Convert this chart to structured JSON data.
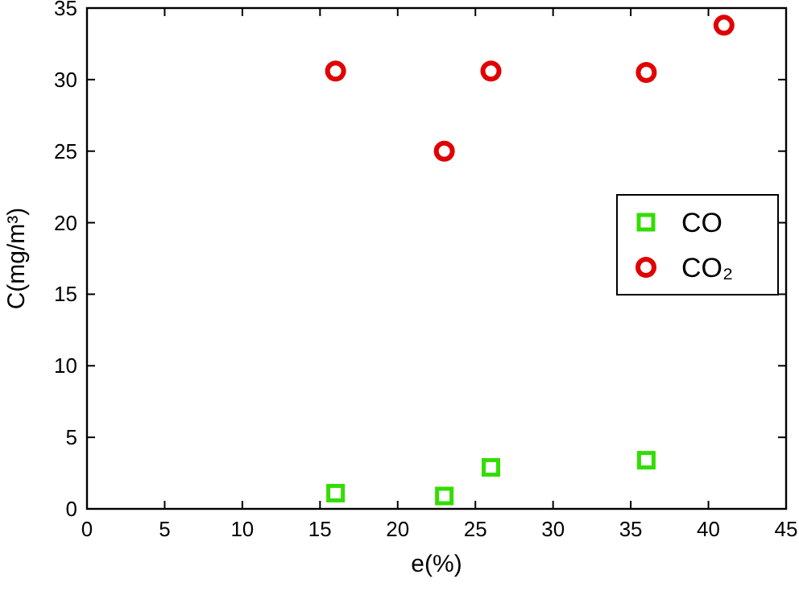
{
  "chart_data": {
    "type": "scatter",
    "xlabel": "e(%)",
    "ylabel": "C(mg/m³)",
    "xlim": [
      0,
      45
    ],
    "ylim": [
      0,
      35
    ],
    "xticks": [
      0,
      5,
      10,
      15,
      20,
      25,
      30,
      35,
      40,
      45
    ],
    "yticks": [
      0,
      5,
      10,
      15,
      20,
      25,
      30,
      35
    ],
    "grid": false,
    "legend": "right",
    "series": [
      {
        "name": "CO",
        "color": "#33dd00",
        "marker": "square",
        "x": [
          16,
          23,
          26,
          36
        ],
        "values": [
          1.1,
          0.9,
          2.9,
          3.4
        ]
      },
      {
        "name": "CO₂",
        "color": "#e00000",
        "marker": "circle",
        "x": [
          16,
          23,
          26,
          36,
          41
        ],
        "values": [
          30.6,
          25,
          30.6,
          30.5,
          33.8
        ]
      }
    ]
  }
}
